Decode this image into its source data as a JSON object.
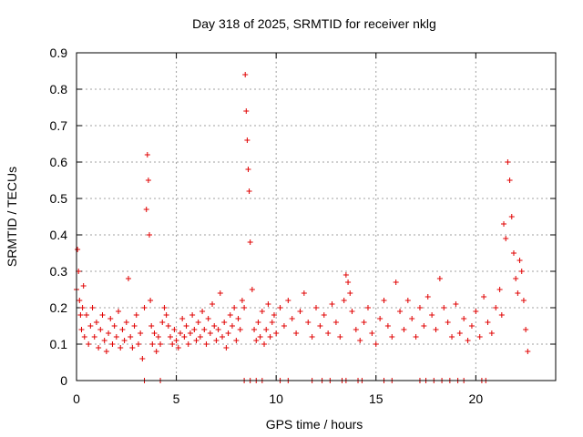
{
  "chart_data": {
    "type": "scatter",
    "title": "Day 318 of 2025, SRMTID for receiver nklg",
    "xlabel": "GPS time / hours",
    "ylabel": "SRMTID / TECUs",
    "xlim": [
      0,
      24
    ],
    "ylim": [
      0,
      0.9
    ],
    "xticks": [
      0,
      5,
      10,
      15,
      20
    ],
    "xtick_labels": [
      "0",
      "5",
      "10",
      "15",
      "20"
    ],
    "yticks": [
      0,
      0.1,
      0.2,
      0.3,
      0.4,
      0.5,
      0.6,
      0.7,
      0.8,
      0.9
    ],
    "ytick_labels": [
      "0",
      "0.1",
      "0.2",
      "0.3",
      "0.4",
      "0.5",
      "0.6",
      "0.7",
      "0.8",
      "0.9"
    ],
    "grid": true,
    "marker": "plus",
    "series": [
      {
        "name": "SRMTID",
        "color": "#e00000",
        "x": [
          0.0,
          0.05,
          0.1,
          0.15,
          0.2,
          0.25,
          0.3,
          0.35,
          0.4,
          0.5,
          0.6,
          0.7,
          0.8,
          0.9,
          1.0,
          1.1,
          1.2,
          1.3,
          1.4,
          1.5,
          1.6,
          1.7,
          1.8,
          1.9,
          2.0,
          2.1,
          2.2,
          2.3,
          2.4,
          2.5,
          2.6,
          2.7,
          2.8,
          2.9,
          3.0,
          3.1,
          3.2,
          3.3,
          3.4,
          3.5,
          3.55,
          3.6,
          3.65,
          3.7,
          3.75,
          3.8,
          3.9,
          4.0,
          4.1,
          4.2,
          4.3,
          4.4,
          4.5,
          4.6,
          4.7,
          4.8,
          4.9,
          5.0,
          5.1,
          5.2,
          5.3,
          5.4,
          5.5,
          5.6,
          5.7,
          5.8,
          5.9,
          6.0,
          6.1,
          6.2,
          6.3,
          6.4,
          6.5,
          6.6,
          6.7,
          6.8,
          6.9,
          7.0,
          7.1,
          7.2,
          7.3,
          7.4,
          7.5,
          7.6,
          7.7,
          7.8,
          7.9,
          8.0,
          8.1,
          8.2,
          8.3,
          8.4,
          8.45,
          8.5,
          8.55,
          8.6,
          8.65,
          8.7,
          8.8,
          8.9,
          9.0,
          9.1,
          9.2,
          9.3,
          9.4,
          9.5,
          9.6,
          9.7,
          9.8,
          9.9,
          10.0,
          10.2,
          10.4,
          10.6,
          10.8,
          11.0,
          11.2,
          11.4,
          11.6,
          11.8,
          12.0,
          12.2,
          12.4,
          12.6,
          12.8,
          13.0,
          13.2,
          13.4,
          13.5,
          13.6,
          13.7,
          13.8,
          14.0,
          14.2,
          14.4,
          14.6,
          14.8,
          15.0,
          15.2,
          15.4,
          15.6,
          15.8,
          16.0,
          16.2,
          16.4,
          16.6,
          16.8,
          17.0,
          17.2,
          17.4,
          17.6,
          17.8,
          18.0,
          18.2,
          18.4,
          18.6,
          18.8,
          19.0,
          19.2,
          19.4,
          19.6,
          19.8,
          20.0,
          20.2,
          20.4,
          20.6,
          20.8,
          21.0,
          21.2,
          21.3,
          21.4,
          21.5,
          21.6,
          21.7,
          21.8,
          21.9,
          22.0,
          22.1,
          22.2,
          22.3,
          22.4,
          22.5,
          22.6
        ],
        "values": [
          0.25,
          0.36,
          0.3,
          0.22,
          0.18,
          0.14,
          0.2,
          0.26,
          0.12,
          0.18,
          0.1,
          0.15,
          0.2,
          0.12,
          0.16,
          0.09,
          0.14,
          0.18,
          0.11,
          0.08,
          0.13,
          0.17,
          0.1,
          0.15,
          0.12,
          0.19,
          0.09,
          0.14,
          0.11,
          0.16,
          0.28,
          0.12,
          0.09,
          0.15,
          0.18,
          0.1,
          0.13,
          0.06,
          0.2,
          0.47,
          0.62,
          0.55,
          0.4,
          0.22,
          0.15,
          0.1,
          0.13,
          0.08,
          0.12,
          0.1,
          0.16,
          0.2,
          0.18,
          0.15,
          0.12,
          0.1,
          0.14,
          0.11,
          0.09,
          0.13,
          0.17,
          0.12,
          0.15,
          0.1,
          0.13,
          0.18,
          0.14,
          0.11,
          0.16,
          0.12,
          0.19,
          0.14,
          0.1,
          0.17,
          0.13,
          0.21,
          0.15,
          0.11,
          0.14,
          0.24,
          0.12,
          0.16,
          0.09,
          0.13,
          0.18,
          0.15,
          0.2,
          0.11,
          0.17,
          0.14,
          0.22,
          0.2,
          0.84,
          0.74,
          0.66,
          0.58,
          0.52,
          0.38,
          0.25,
          0.14,
          0.11,
          0.16,
          0.12,
          0.19,
          0.1,
          0.14,
          0.21,
          0.12,
          0.16,
          0.18,
          0.13,
          0.2,
          0.15,
          0.22,
          0.17,
          0.13,
          0.19,
          0.24,
          0.16,
          0.12,
          0.2,
          0.15,
          0.18,
          0.13,
          0.21,
          0.16,
          0.12,
          0.22,
          0.29,
          0.27,
          0.24,
          0.19,
          0.14,
          0.11,
          0.16,
          0.2,
          0.13,
          0.1,
          0.17,
          0.22,
          0.15,
          0.12,
          0.27,
          0.19,
          0.14,
          0.22,
          0.17,
          0.12,
          0.2,
          0.15,
          0.23,
          0.18,
          0.14,
          0.28,
          0.2,
          0.16,
          0.12,
          0.21,
          0.13,
          0.17,
          0.11,
          0.15,
          0.19,
          0.12,
          0.23,
          0.16,
          0.13,
          0.2,
          0.25,
          0.18,
          0.43,
          0.39,
          0.6,
          0.55,
          0.45,
          0.35,
          0.28,
          0.24,
          0.33,
          0.3,
          0.22,
          0.14,
          0.08
        ]
      }
    ],
    "zero_markers_x": [
      3.4,
      4.2,
      8.4,
      8.7,
      9.0,
      9.3,
      10.2,
      10.6,
      11.8,
      12.3,
      12.7,
      13.3,
      13.5,
      14.1,
      14.3,
      15.4,
      15.8,
      17.2,
      17.5,
      17.9,
      18.3,
      18.7,
      19.1,
      19.4,
      20.3,
      20.5
    ]
  }
}
